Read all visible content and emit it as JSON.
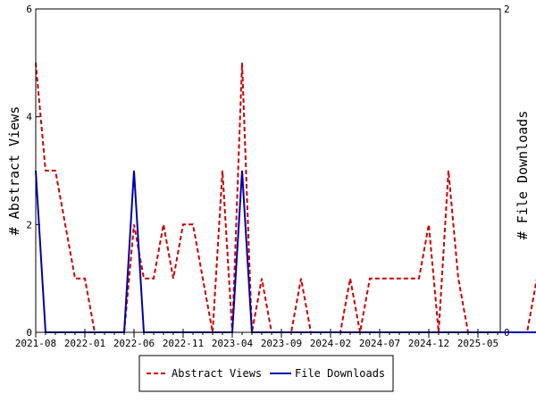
{
  "chart_data": {
    "type": "line",
    "x_tick_labels": [
      "2021-08",
      "2022-01",
      "2022-06",
      "2022-11",
      "2023-04",
      "2023-09",
      "2024-02",
      "2024-07",
      "2024-12",
      "2025-05"
    ],
    "ylabel": "# Abstract Views",
    "y2label": "# File Downloads",
    "ylim": [
      0,
      6
    ],
    "y_ticks": [
      "0",
      "2",
      "4",
      "6"
    ],
    "y2lim": [
      0,
      2
    ],
    "y2_ticks": [
      "0",
      "2"
    ],
    "grid": false,
    "legend_position": "bottom-center",
    "series": [
      {
        "name": "Abstract Views",
        "axis": "left",
        "color": "#cc0000",
        "style": "dashed",
        "x": [
          "2021-08",
          "2021-09",
          "2021-10",
          "2021-11",
          "2021-12",
          "2022-01",
          "2022-02",
          "2022-03",
          "2022-04",
          "2022-05",
          "2022-06",
          "2022-07",
          "2022-08",
          "2022-09",
          "2022-10",
          "2022-11",
          "2022-12",
          "2023-01",
          "2023-02",
          "2023-03",
          "2023-04",
          "2023-05",
          "2023-06",
          "2023-07",
          "2023-08",
          "2023-09",
          "2023-10",
          "2023-11",
          "2023-12",
          "2024-01",
          "2024-02",
          "2024-03",
          "2024-04",
          "2024-05",
          "2024-06",
          "2024-07",
          "2024-08",
          "2024-09",
          "2024-10",
          "2024-11",
          "2024-12",
          "2025-01",
          "2025-02",
          "2025-03",
          "2025-04",
          "2025-05",
          "2025-06",
          "2025-07",
          "2025-08",
          "2025-09",
          "2025-10",
          "2025-11"
        ],
        "values": [
          5,
          3,
          3,
          2,
          1,
          1,
          0,
          0,
          0,
          0,
          2,
          1,
          1,
          2,
          1,
          2,
          2,
          1,
          0,
          3,
          0,
          5,
          0,
          1,
          0,
          0,
          0,
          1,
          0,
          0,
          0,
          0,
          1,
          0,
          1,
          1,
          1,
          1,
          1,
          1,
          2,
          0,
          3,
          1,
          0,
          0,
          0,
          0,
          0,
          0,
          0,
          1
        ]
      },
      {
        "name": "File Downloads",
        "axis": "right",
        "color": "#0000aa",
        "style": "solid",
        "x": [
          "2021-08",
          "2021-09",
          "2021-10",
          "2021-11",
          "2021-12",
          "2022-01",
          "2022-02",
          "2022-03",
          "2022-04",
          "2022-05",
          "2022-06",
          "2022-07",
          "2022-08",
          "2022-09",
          "2022-10",
          "2022-11",
          "2022-12",
          "2023-01",
          "2023-02",
          "2023-03",
          "2023-04",
          "2023-05",
          "2023-06",
          "2023-07",
          "2023-08",
          "2023-09",
          "2023-10",
          "2023-11",
          "2023-12",
          "2024-01",
          "2024-02",
          "2024-03",
          "2024-04",
          "2024-05",
          "2024-06",
          "2024-07",
          "2024-08",
          "2024-09",
          "2024-10",
          "2024-11",
          "2024-12",
          "2025-01",
          "2025-02",
          "2025-03",
          "2025-04",
          "2025-05",
          "2025-06",
          "2025-07",
          "2025-08",
          "2025-09",
          "2025-10",
          "2025-11"
        ],
        "values": [
          1,
          0,
          0,
          0,
          0,
          0,
          0,
          0,
          0,
          0,
          1,
          0,
          0,
          0,
          0,
          0,
          0,
          0,
          0,
          0,
          0,
          1,
          0,
          0,
          0,
          0,
          0,
          0,
          0,
          0,
          0,
          0,
          0,
          0,
          0,
          0,
          0,
          0,
          0,
          0,
          0,
          0,
          0,
          0,
          0,
          0,
          0,
          0,
          0,
          0,
          0,
          0
        ]
      }
    ]
  }
}
